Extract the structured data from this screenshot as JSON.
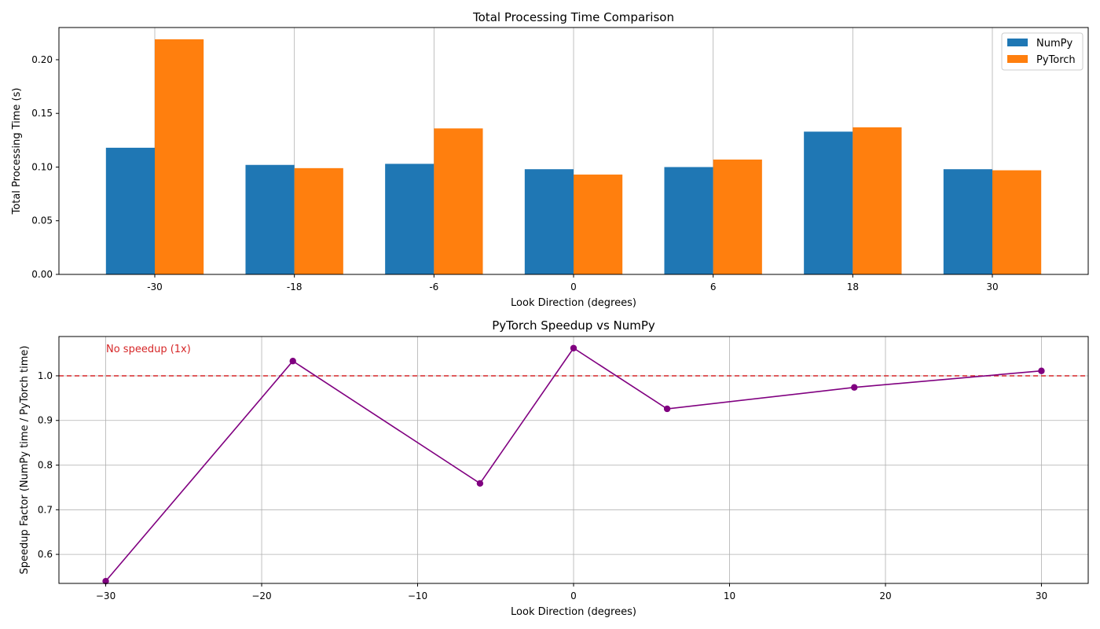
{
  "chart_data": [
    {
      "type": "bar",
      "title": "Total Processing Time Comparison",
      "xlabel": "Look Direction (degrees)",
      "ylabel": "Total Processing Time (s)",
      "categories": [
        "-30",
        "-18",
        "-6",
        "0",
        "6",
        "18",
        "30"
      ],
      "series": [
        {
          "name": "NumPy",
          "color": "#1f77b4",
          "values": [
            0.118,
            0.102,
            0.103,
            0.098,
            0.1,
            0.133,
            0.098
          ]
        },
        {
          "name": "PyTorch",
          "color": "#ff7f0e",
          "values": [
            0.219,
            0.099,
            0.136,
            0.093,
            0.107,
            0.137,
            0.097
          ]
        }
      ],
      "ylim": [
        0,
        0.23
      ],
      "yticks": [
        0.0,
        0.05,
        0.1,
        0.15,
        0.2
      ],
      "ytick_labels": [
        "0.00",
        "0.05",
        "0.10",
        "0.15",
        "0.20"
      ],
      "grid": "x",
      "legend": "top-right"
    },
    {
      "type": "line",
      "title": "PyTorch Speedup vs NumPy",
      "xlabel": "Look Direction (degrees)",
      "ylabel": "Speedup Factor (NumPy time / PyTorch time)",
      "x": [
        -30,
        -18,
        -6,
        0,
        6,
        18,
        30
      ],
      "series": [
        {
          "color": "#800080",
          "values": [
            0.54,
            1.033,
            0.759,
            1.062,
            0.926,
            0.974,
            1.011
          ]
        }
      ],
      "xlim": [
        -33,
        33
      ],
      "ylim": [
        0.535,
        1.088
      ],
      "xticks": [
        -30,
        -20,
        -10,
        0,
        10,
        20,
        30
      ],
      "xtick_labels": [
        "−30",
        "−20",
        "−10",
        "0",
        "10",
        "20",
        "30"
      ],
      "yticks": [
        0.6,
        0.7,
        0.8,
        0.9,
        1.0
      ],
      "ytick_labels": [
        "0.6",
        "0.7",
        "0.8",
        "0.9",
        "1.0"
      ],
      "reference_line": {
        "y": 1.0,
        "color": "#d62728",
        "label": "No speedup (1x)"
      },
      "grid": "both"
    }
  ]
}
